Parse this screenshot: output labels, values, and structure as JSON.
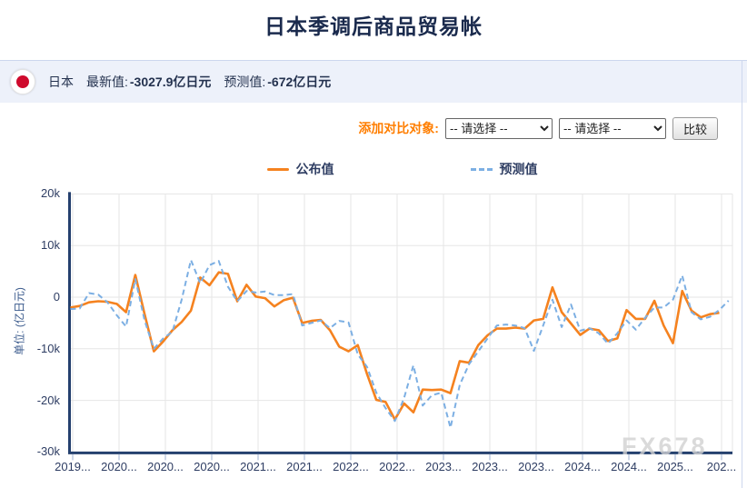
{
  "page": {
    "title": "日本季调后商品贸易帐"
  },
  "info_bar": {
    "country": "日本",
    "flag_icon": "japan-flag-icon",
    "latest_label": "最新值:",
    "latest_value": "-3027.9亿日元",
    "forecast_label": "预测值:",
    "forecast_value": "-672亿日元"
  },
  "compare": {
    "label": "添加对比对象:",
    "select1_value": "-- 请选择 --",
    "select2_value": "-- 请选择 --",
    "button_label": "比较"
  },
  "legend": {
    "published_label": "公布值",
    "forecast_label": "预测值"
  },
  "watermark": "FX678",
  "colors": {
    "published_line": "#f5821f",
    "forecast_line": "#7cafe3",
    "axis": "#24406e",
    "grid": "#e6e6e6",
    "tick": "#9fb0d0",
    "accent_orange": "#ff7e00",
    "info_bar_bg": "#edf1fa",
    "flag_red": "#cf0a2c"
  },
  "chart_data": {
    "type": "line",
    "title": "日本季调后商品贸易帐",
    "ylabel": "单位: (亿日元)",
    "unit": "亿日元",
    "ylim": [
      -30000,
      20000
    ],
    "grid": true,
    "legend_position": "top-center",
    "y_ticks": [
      20000,
      10000,
      0,
      -10000,
      -20000,
      -30000
    ],
    "y_tick_labels": [
      "20k",
      "10k",
      "0",
      "-10k",
      "-20k",
      "-30k"
    ],
    "x_tick_labels": [
      "2019...",
      "2020...",
      "2020...",
      "2020...",
      "2021...",
      "2021...",
      "2022...",
      "2022...",
      "2023...",
      "2023...",
      "2023...",
      "2024...",
      "2024...",
      "2025...",
      "202..."
    ],
    "x_start": "2019-09",
    "x_interval": "monthly",
    "series": [
      {
        "name": "公布值",
        "style": "solid",
        "color": "#f5821f",
        "values": [
          -2000,
          -1700,
          -1000,
          -800,
          -900,
          -1300,
          -2900,
          4300,
          -3300,
          -10500,
          -8600,
          -6400,
          -4800,
          -2600,
          3800,
          2300,
          4800,
          4500,
          -800,
          2400,
          100,
          -200,
          -1800,
          -600,
          -100,
          -5000,
          -4600,
          -4400,
          -6400,
          -9600,
          -10500,
          -9300,
          -14900,
          -19900,
          -20300,
          -23700,
          -20600,
          -22300,
          -17900,
          -18000,
          -17900,
          -18600,
          -12400,
          -12700,
          -9300,
          -7400,
          -6100,
          -6100,
          -5900,
          -6100,
          -4500,
          -4200,
          1900,
          -2900,
          -5100,
          -7300,
          -6100,
          -6400,
          -8500,
          -8000,
          -2500,
          -4200,
          -4200,
          -700,
          -5500,
          -8900,
          1200,
          -2600,
          -3900,
          -3300,
          -3027.9
        ]
      },
      {
        "name": "预测值",
        "style": "dashed",
        "color": "#7cafe3",
        "values": [
          -2300,
          -2200,
          800,
          500,
          -1000,
          -3500,
          -5700,
          3500,
          -4500,
          -10000,
          -8000,
          -6700,
          -500,
          7200,
          2700,
          6200,
          7000,
          2000,
          -800,
          1200,
          900,
          1100,
          400,
          400,
          600,
          -5500,
          -5000,
          -4500,
          -6000,
          -4600,
          -4900,
          -11100,
          -13500,
          -18500,
          -21500,
          -24000,
          -19500,
          -13200,
          -21000,
          -19000,
          -18500,
          -25300,
          -17000,
          -13000,
          -10500,
          -8000,
          -5500,
          -5300,
          -5500,
          -6000,
          -10400,
          -5500,
          -500,
          -5800,
          -1400,
          -6500,
          -6000,
          -7000,
          -9000,
          -7000,
          -4500,
          -6300,
          -4000,
          -2000,
          -2000,
          -500,
          4200,
          -2900,
          -4300,
          -3800,
          -2500,
          -672
        ]
      }
    ]
  }
}
